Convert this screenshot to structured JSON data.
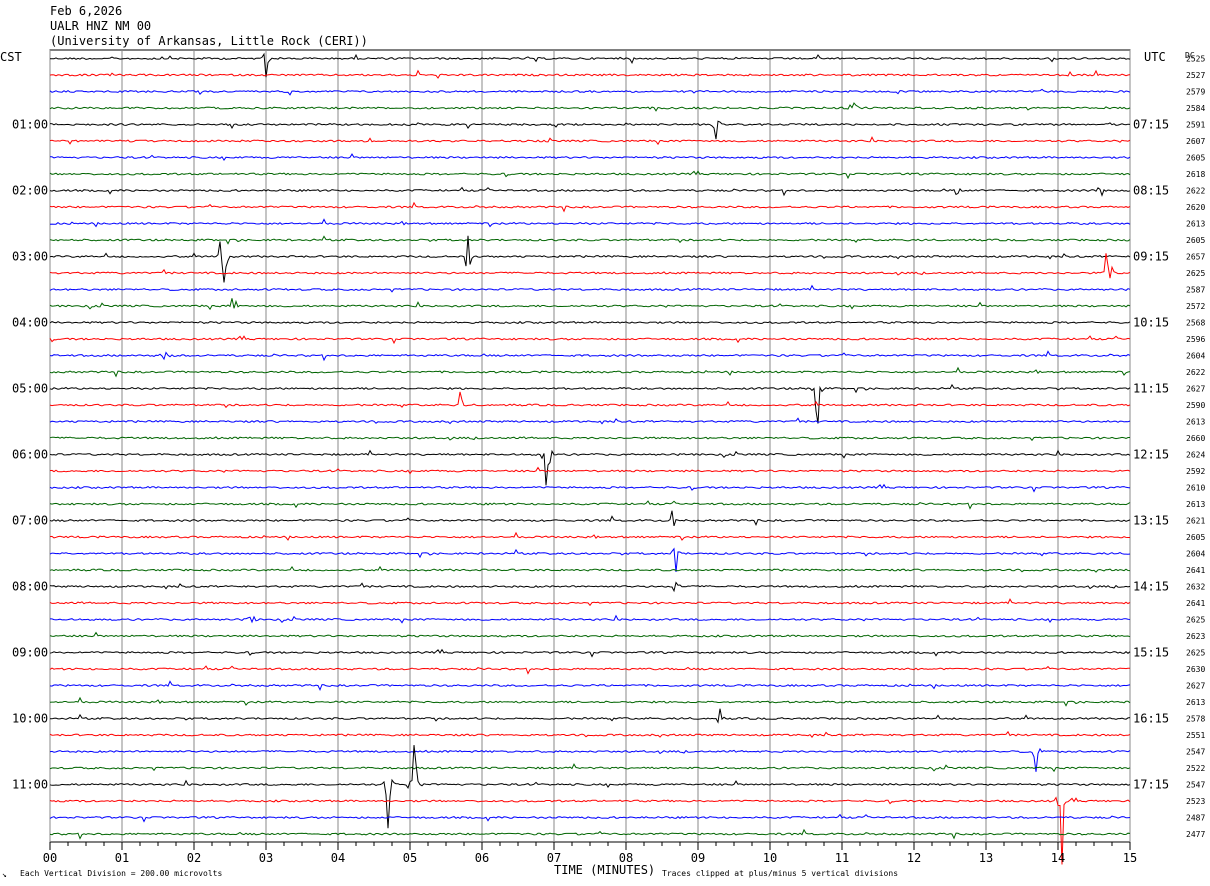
{
  "header": {
    "date": "Feb 6,2026",
    "station": "UALR HNZ NM 00",
    "institution": "(University of Arkansas, Little Rock (CERI))"
  },
  "labels": {
    "left_tz": "CST",
    "right_tz": "UTC",
    "dc_heading": "DC"
  },
  "footer": {
    "scale_note": "Each Vertical Division =  200.00 microvolts",
    "clip_note": "Traces clipped at plus/minus 5 vertical divisions",
    "mark": "↘"
  },
  "chart_data": {
    "type": "line",
    "title": "",
    "xlabel": "TIME (MINUTES)",
    "ylabel": "",
    "xlim": [
      0,
      15
    ],
    "x_ticks": [
      "00",
      "01",
      "02",
      "03",
      "04",
      "05",
      "06",
      "07",
      "08",
      "09",
      "10",
      "11",
      "12",
      "13",
      "14",
      "15"
    ],
    "trace_count": 48,
    "trace_colors": [
      "#000000",
      "#ff0000",
      "#0000ff",
      "#006400"
    ],
    "cst_labels": [
      {
        "trace": 4,
        "text": "01:00"
      },
      {
        "trace": 8,
        "text": "02:00"
      },
      {
        "trace": 12,
        "text": "03:00"
      },
      {
        "trace": 16,
        "text": "04:00"
      },
      {
        "trace": 20,
        "text": "05:00"
      },
      {
        "trace": 24,
        "text": "06:00"
      },
      {
        "trace": 28,
        "text": "07:00"
      },
      {
        "trace": 32,
        "text": "08:00"
      },
      {
        "trace": 36,
        "text": "09:00"
      },
      {
        "trace": 40,
        "text": "10:00"
      },
      {
        "trace": 44,
        "text": "11:00"
      }
    ],
    "utc_labels": [
      {
        "trace": 4,
        "text": "07:15"
      },
      {
        "trace": 8,
        "text": "08:15"
      },
      {
        "trace": 12,
        "text": "09:15"
      },
      {
        "trace": 16,
        "text": "10:15"
      },
      {
        "trace": 20,
        "text": "11:15"
      },
      {
        "trace": 24,
        "text": "12:15"
      },
      {
        "trace": 28,
        "text": "13:15"
      },
      {
        "trace": 32,
        "text": "14:15"
      },
      {
        "trace": 36,
        "text": "15:15"
      },
      {
        "trace": 40,
        "text": "16:15"
      },
      {
        "trace": 44,
        "text": "17:15"
      }
    ],
    "dc_offsets": [
      "2525",
      "2527",
      "2579",
      "2584",
      "2591",
      "2607",
      "2605",
      "2618",
      "2622",
      "2620",
      "2613",
      "2605",
      "2657",
      "2625",
      "2587",
      "2572",
      "2568",
      "2596",
      "2604",
      "2622",
      "2627",
      "2590",
      "2613",
      "2660",
      "2624",
      "2592",
      "2610",
      "2613",
      "2621",
      "2605",
      "2604",
      "2641",
      "2632",
      "2641",
      "2625",
      "2623",
      "2625",
      "2630",
      "2627",
      "2613",
      "2578",
      "2551",
      "2547",
      "2522",
      "2547",
      "2523",
      "2487",
      "2477"
    ],
    "events": [
      {
        "trace": 0,
        "minute": 3.0,
        "amp": 1.2
      },
      {
        "trace": 4,
        "minute": 9.25,
        "amp": 1.0
      },
      {
        "trace": 3,
        "minute": 11.15,
        "amp": 1.6
      },
      {
        "trace": 8,
        "minute": 14.6,
        "amp": 2.2
      },
      {
        "trace": 8,
        "minute": 12.6,
        "amp": 0.6
      },
      {
        "trace": 12,
        "minute": 2.4,
        "amp": 5.0
      },
      {
        "trace": 12,
        "minute": 5.8,
        "amp": 2.2
      },
      {
        "trace": 13,
        "minute": 14.7,
        "amp": 5.0
      },
      {
        "trace": 15,
        "minute": 2.55,
        "amp": 1.1
      },
      {
        "trace": 18,
        "minute": 1.6,
        "amp": 1.0
      },
      {
        "trace": 20,
        "minute": 10.65,
        "amp": 5.0
      },
      {
        "trace": 21,
        "minute": 5.7,
        "amp": 1.2
      },
      {
        "trace": 24,
        "minute": 6.9,
        "amp": 4.5
      },
      {
        "trace": 28,
        "minute": 8.65,
        "amp": 0.8
      },
      {
        "trace": 30,
        "minute": 8.7,
        "amp": 1.4
      },
      {
        "trace": 32,
        "minute": 8.7,
        "amp": 1.6
      },
      {
        "trace": 34,
        "minute": 2.8,
        "amp": 1.0
      },
      {
        "trace": 40,
        "minute": 9.3,
        "amp": 0.7
      },
      {
        "trace": 42,
        "minute": 13.7,
        "amp": 2.0
      },
      {
        "trace": 44,
        "minute": 5.05,
        "amp": 5.0
      },
      {
        "trace": 44,
        "minute": 4.7,
        "amp": 3.5
      },
      {
        "trace": 45,
        "minute": 14.05,
        "amp": 5.0
      }
    ]
  }
}
